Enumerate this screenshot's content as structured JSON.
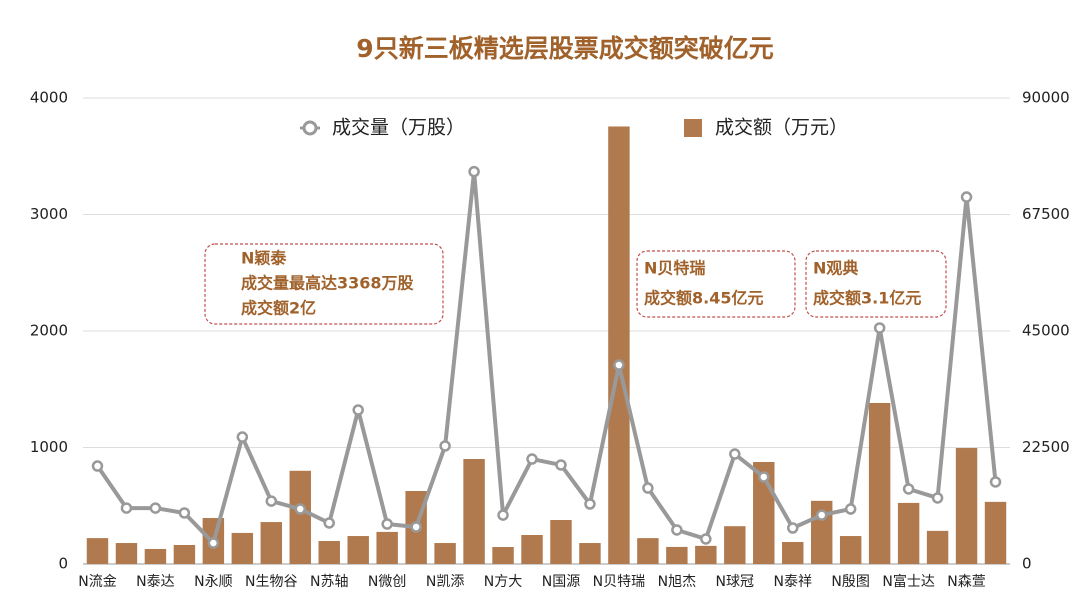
{
  "chart_data": {
    "type": "bar",
    "title": "9只新三板精选层股票成交额突破亿元",
    "categories": [
      "N流金",
      null,
      "N泰达",
      null,
      "N永顺",
      null,
      "N生物谷",
      null,
      "N苏轴",
      null,
      "N微创",
      null,
      "N凯添",
      null,
      "N方大",
      null,
      "N国源",
      null,
      "N贝特瑞",
      null,
      "N旭杰",
      null,
      "N球冠",
      null,
      "N泰祥",
      null,
      "N殷图",
      null,
      "N富士达",
      null,
      "N森萱",
      null
    ],
    "series": [
      {
        "name": "成交量（万股）",
        "type": "line",
        "axis": "y",
        "color": "#999999",
        "values": [
          841,
          480,
          480,
          438,
          180,
          1090,
          540,
          472,
          352,
          1322,
          343,
          318,
          1013,
          3368,
          420,
          901,
          850,
          515,
          1708,
          652,
          292,
          215,
          944,
          747,
          309,
          420,
          472,
          2026,
          644,
          567,
          3150,
          704
        ]
      },
      {
        "name": "成交额（万元）",
        "type": "bar",
        "axis": "y2",
        "color": "#b07a4e",
        "values": [
          5000,
          4050,
          2900,
          3670,
          8880,
          6000,
          8100,
          18000,
          4440,
          5400,
          6200,
          14100,
          4050,
          20280,
          3280,
          5600,
          8500,
          4050,
          84500,
          5000,
          3300,
          3500,
          7300,
          19700,
          4250,
          12200,
          5400,
          31100,
          11800,
          6400,
          22400,
          12000
        ]
      }
    ],
    "ylim": [
      0,
      4000
    ],
    "yticks": [
      0,
      1000,
      2000,
      3000,
      4000
    ],
    "y2lim": [
      0,
      90000
    ],
    "y2ticks": [
      0,
      22500,
      45000,
      67500,
      90000
    ],
    "grid": true,
    "annotations": [
      {
        "lines": [
          "N颖泰",
          "成交量最高达3368万股",
          "成交额2亿"
        ]
      },
      {
        "lines": [
          "N贝特瑞",
          "成交额8.45亿元"
        ]
      },
      {
        "lines": [
          "N观典",
          "成交额3.1亿元"
        ]
      }
    ]
  }
}
